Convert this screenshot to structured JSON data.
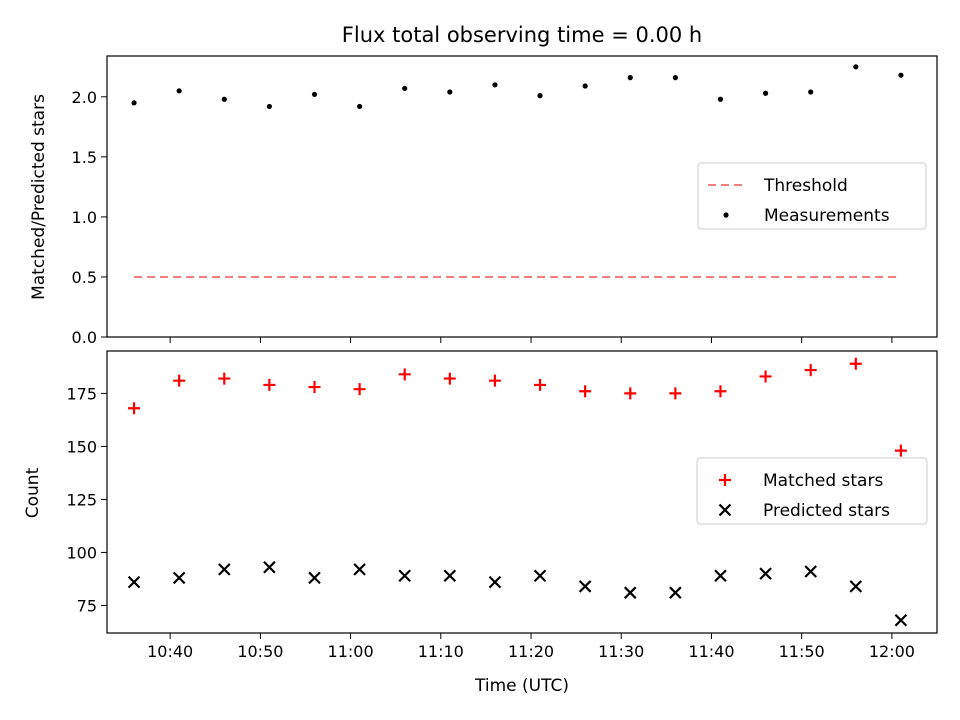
{
  "title": "Flux total observing time = 0.00 h",
  "chart_data": [
    {
      "type": "scatter",
      "ylabel": "Matched/Predicted stars",
      "xlabel": "",
      "xlim": [
        "10:33",
        "12:05"
      ],
      "ylim": [
        0,
        2.34
      ],
      "yticks": [
        0.0,
        0.5,
        1.0,
        1.5,
        2.0
      ],
      "ytick_labels": [
        "0.0",
        "0.5",
        "1.0",
        "1.5",
        "2.0"
      ],
      "legend_position": "center-right",
      "series": [
        {
          "name": "Threshold",
          "kind": "dashed-line",
          "color": "#f08080",
          "x": [
            "10:36",
            "12:01"
          ],
          "values": [
            0.5,
            0.5
          ]
        },
        {
          "name": "Measurements",
          "kind": "dot",
          "color": "#000000",
          "x": [
            "10:36",
            "10:41",
            "10:46",
            "10:51",
            "10:56",
            "11:01",
            "11:06",
            "11:11",
            "11:16",
            "11:21",
            "11:26",
            "11:31",
            "11:36",
            "11:41",
            "11:46",
            "11:51",
            "11:56",
            "12:01"
          ],
          "values": [
            1.95,
            2.05,
            1.98,
            1.92,
            2.02,
            1.92,
            2.07,
            2.04,
            2.1,
            2.01,
            2.09,
            2.16,
            2.16,
            1.98,
            2.03,
            2.04,
            2.25,
            2.18
          ]
        }
      ]
    },
    {
      "type": "scatter",
      "ylabel": "Count",
      "xlabel": "Time (UTC)",
      "xlim": [
        "10:33",
        "12:05"
      ],
      "ylim": [
        62,
        195
      ],
      "yticks": [
        75,
        100,
        125,
        150,
        175
      ],
      "ytick_labels": [
        "75",
        "100",
        "125",
        "150",
        "175"
      ],
      "xticks": [
        "10:40",
        "10:50",
        "11:00",
        "11:10",
        "11:20",
        "11:30",
        "11:40",
        "11:50",
        "12:00"
      ],
      "legend_position": "center-right",
      "series": [
        {
          "name": "Matched stars",
          "kind": "plus",
          "color": "#ff0000",
          "x": [
            "10:36",
            "10:41",
            "10:46",
            "10:51",
            "10:56",
            "11:01",
            "11:06",
            "11:11",
            "11:16",
            "11:21",
            "11:26",
            "11:31",
            "11:36",
            "11:41",
            "11:46",
            "11:51",
            "11:56",
            "12:01"
          ],
          "values": [
            168,
            181,
            182,
            179,
            178,
            177,
            184,
            182,
            181,
            179,
            176,
            175,
            175,
            176,
            183,
            186,
            189,
            148
          ]
        },
        {
          "name": "Predicted stars",
          "kind": "x",
          "color": "#000000",
          "x": [
            "10:36",
            "10:41",
            "10:46",
            "10:51",
            "10:56",
            "11:01",
            "11:06",
            "11:11",
            "11:16",
            "11:21",
            "11:26",
            "11:31",
            "11:36",
            "11:41",
            "11:46",
            "11:51",
            "11:56",
            "12:01"
          ],
          "values": [
            86,
            88,
            92,
            93,
            88,
            92,
            89,
            89,
            86,
            89,
            84,
            81,
            81,
            89,
            90,
            91,
            84,
            68
          ]
        }
      ]
    }
  ]
}
